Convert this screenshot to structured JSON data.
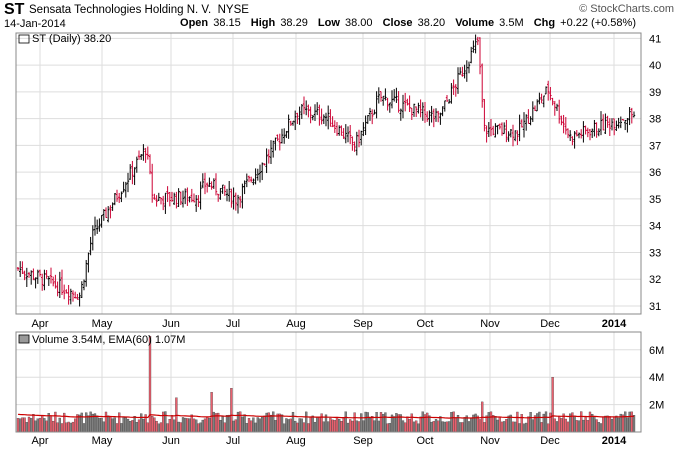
{
  "header": {
    "ticker": "ST",
    "company": "Sensata Technologies Holding N. V.",
    "exchange": "NYSE",
    "date": "14-Jan-2014",
    "brand": "© StockCharts.com",
    "open_label": "Open",
    "open": "38.15",
    "high_label": "High",
    "high": "38.29",
    "low_label": "Low",
    "low": "38.00",
    "close_label": "Close",
    "close": "38.20",
    "volume_label": "Volume",
    "volume": "3.5M",
    "chg_label": "Chg",
    "chg": "+0.22 (+0.58%)"
  },
  "price_panel": {
    "legend": "ST (Daily) 38.20",
    "y_ticks": [
      31,
      32,
      33,
      34,
      35,
      36,
      37,
      38,
      39,
      40,
      41
    ]
  },
  "volume_panel": {
    "legend": "Volume 3.54M, EMA(60) 1.07M",
    "y_ticks": [
      {
        "value": 2,
        "label": "2M"
      },
      {
        "value": 4,
        "label": "4M"
      },
      {
        "value": 6,
        "label": "6M"
      }
    ]
  },
  "x_axis": {
    "months": [
      {
        "label": "Apr",
        "bold": false
      },
      {
        "label": "May",
        "bold": false
      },
      {
        "label": "Jun",
        "bold": false
      },
      {
        "label": "Jul",
        "bold": false
      },
      {
        "label": "Aug",
        "bold": false
      },
      {
        "label": "Sep",
        "bold": false
      },
      {
        "label": "Oct",
        "bold": false
      },
      {
        "label": "Nov",
        "bold": false
      },
      {
        "label": "Dec",
        "bold": false
      },
      {
        "label": "2014",
        "bold": true
      }
    ]
  },
  "colors": {
    "up": "#000000",
    "down": "#cc0033",
    "grid": "#dddddd",
    "vol_up": "#808080",
    "vol_down": "#e8606e",
    "ema": "#cc0000"
  },
  "chart_data": {
    "type": "ohlc",
    "title": "ST (Daily) 38.20",
    "ylim": [
      30.7,
      41.2
    ],
    "volume_ylim": [
      0,
      7.3
    ],
    "grid": true,
    "legend_position": "top-left",
    "anchors": [
      {
        "month": "Apr",
        "close": 32.4
      },
      {
        "month": "Apr",
        "close": 31.4
      },
      {
        "month": "May",
        "close": 33.6
      },
      {
        "month": "May",
        "close": 36.9
      },
      {
        "month": "May",
        "close": 35.0
      },
      {
        "month": "Jun",
        "close": 35.1
      },
      {
        "month": "Jun",
        "close": 35.6
      },
      {
        "month": "Jul",
        "close": 35.0
      },
      {
        "month": "Jul",
        "close": 36.5
      },
      {
        "month": "Aug",
        "close": 38.3
      },
      {
        "month": "Aug",
        "close": 38.1
      },
      {
        "month": "Sep",
        "close": 37.0
      },
      {
        "month": "Sep",
        "close": 38.8
      },
      {
        "month": "Oct",
        "close": 38.0
      },
      {
        "month": "Oct",
        "close": 40.9
      },
      {
        "month": "Nov",
        "close": 37.6
      },
      {
        "month": "Nov",
        "close": 37.5
      },
      {
        "month": "Dec",
        "close": 39.1
      },
      {
        "month": "Dec",
        "close": 37.3
      },
      {
        "month": "2014",
        "close": 38.2
      }
    ],
    "volume_ema_millions": 1.07,
    "volume_last_millions": 3.54,
    "volume_spikes_millions": [
      7.0,
      2.5,
      2.9,
      3.2,
      2.2,
      4.0,
      3.8
    ]
  }
}
